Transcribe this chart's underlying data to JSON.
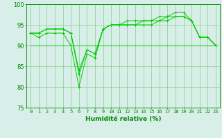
{
  "x": [
    0,
    1,
    2,
    3,
    4,
    5,
    6,
    7,
    8,
    9,
    10,
    11,
    12,
    13,
    14,
    15,
    16,
    17,
    18,
    19,
    20,
    21,
    22,
    23
  ],
  "y_line1": [
    93,
    92,
    93,
    93,
    93,
    90,
    80,
    88,
    87,
    94,
    95,
    95,
    95,
    95,
    95,
    95,
    96,
    96,
    97,
    97,
    96,
    92,
    92,
    90
  ],
  "y_line2": [
    93,
    93,
    94,
    94,
    94,
    93,
    83,
    89,
    88,
    94,
    95,
    95,
    95,
    95,
    96,
    96,
    96,
    97,
    97,
    97,
    96,
    92,
    92,
    90
  ],
  "y_line3": [
    93,
    93,
    94,
    94,
    94,
    93,
    84,
    89,
    88,
    94,
    95,
    95,
    96,
    96,
    96,
    96,
    97,
    97,
    98,
    98,
    96,
    92,
    92,
    90
  ],
  "y_flat": [
    90,
    90,
    90,
    90,
    90,
    90,
    90,
    90,
    90,
    90,
    90,
    90,
    90,
    90,
    90,
    90,
    90,
    90,
    90,
    90,
    90,
    90,
    90,
    90
  ],
  "line_color": "#00cc00",
  "bg_color": "#d8eee8",
  "grid_color": "#88cc88",
  "ylim": [
    75,
    100
  ],
  "xlim": [
    -0.5,
    23.5
  ],
  "yticks": [
    75,
    80,
    85,
    90,
    95,
    100
  ],
  "xlabel": "Humidité relative (%)",
  "xlabel_color": "#008800",
  "tick_color": "#008800",
  "axis_color": "#008800",
  "figw": 3.2,
  "figh": 2.0,
  "dpi": 100
}
